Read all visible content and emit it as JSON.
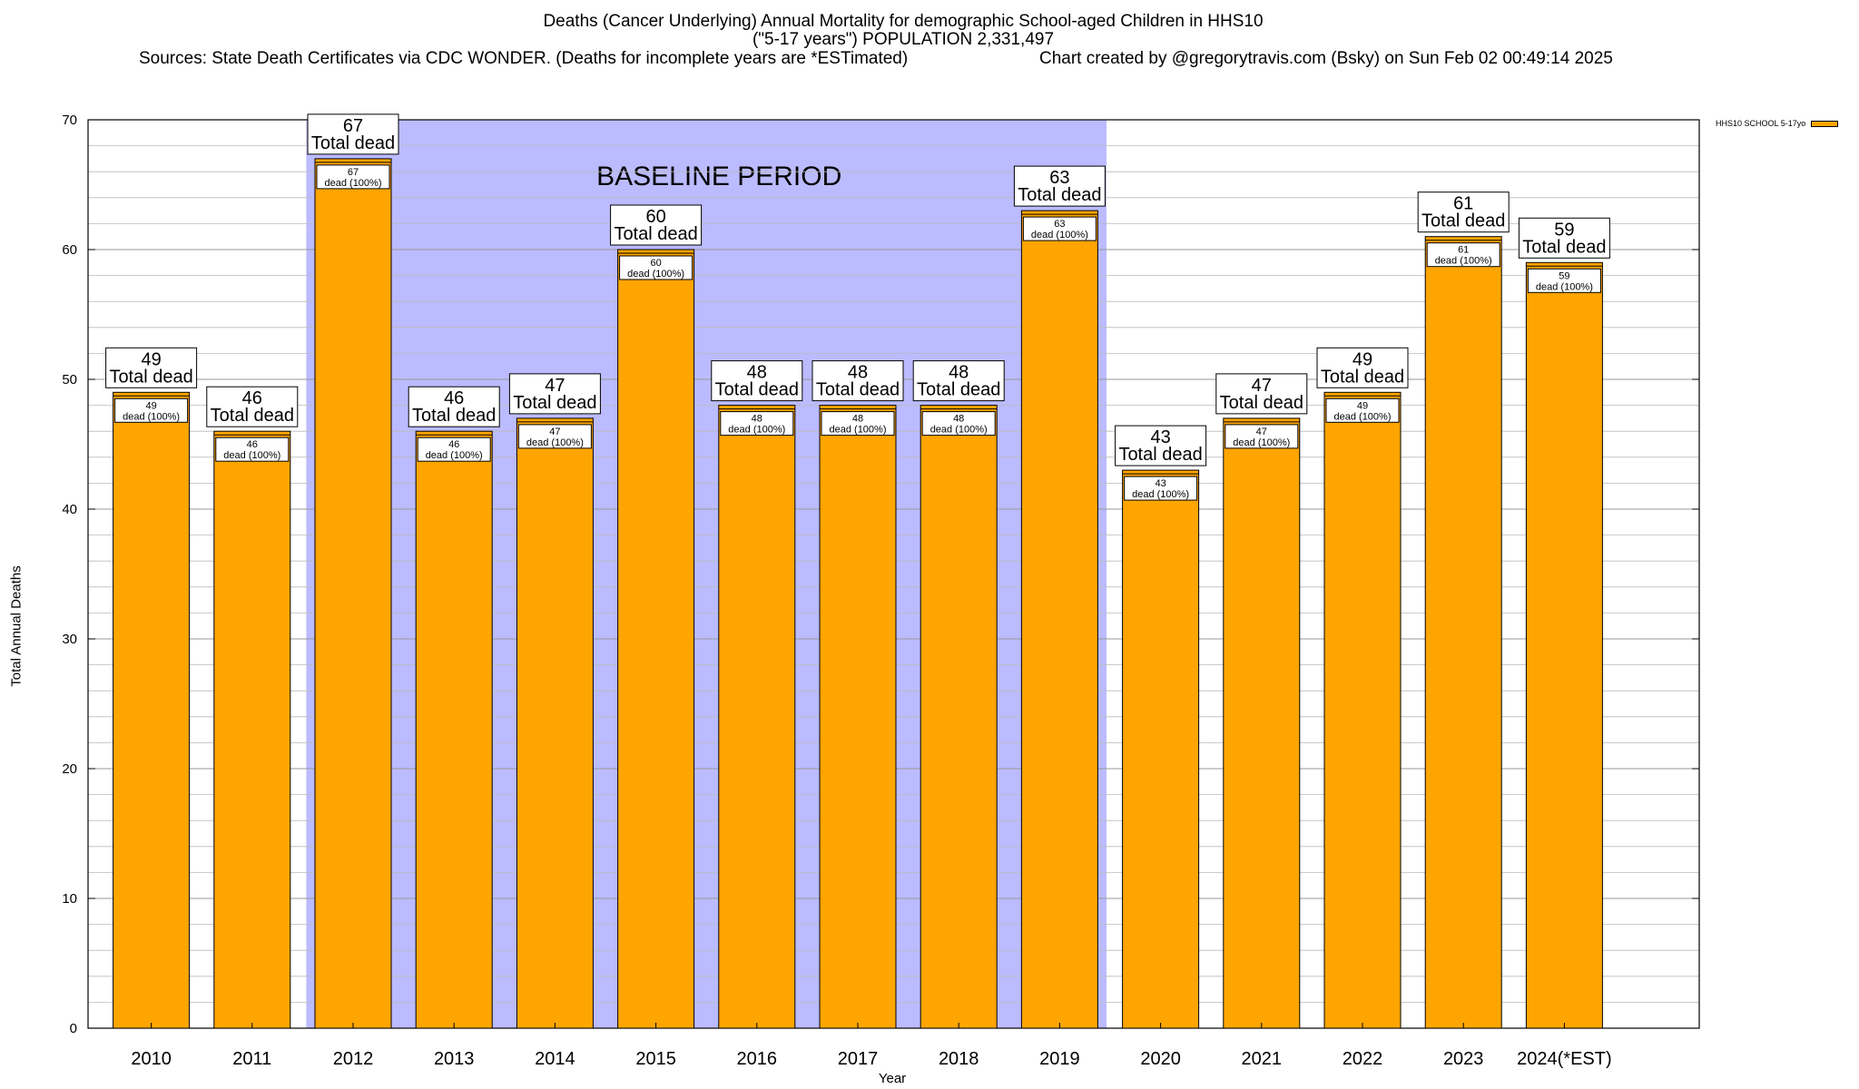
{
  "title": {
    "line1": "Deaths (Cancer Underlying) Annual Mortality for demographic School-aged Children in HHS10",
    "line2": "(\"5-17 years\") POPULATION 2,331,497",
    "sources": "Sources: State Death Certificates via CDC WONDER. (Deaths for incomplete years are *ESTimated)",
    "credit": "Chart created by @gregorytravis.com (Bsky) on Sun Feb 02 00:49:14 2025"
  },
  "legend": {
    "label": "HHS10 SCHOOL 5-17yo",
    "color": "#ffa500"
  },
  "chart_data": {
    "type": "bar",
    "categories": [
      "2010",
      "2011",
      "2012",
      "2013",
      "2014",
      "2015",
      "2016",
      "2017",
      "2018",
      "2019",
      "2020",
      "2021",
      "2022",
      "2023",
      "2024(*EST)"
    ],
    "series": [
      {
        "name": "HHS10 SCHOOL 5-17yo",
        "values": [
          49,
          46,
          67,
          46,
          47,
          60,
          48,
          48,
          48,
          63,
          43,
          47,
          49,
          61,
          59
        ],
        "color": "#ffa500"
      }
    ],
    "xlabel": "Year",
    "ylabel": "Total Annual Deaths",
    "ylim": [
      0,
      70
    ],
    "yticks": [
      0,
      10,
      20,
      30,
      40,
      50,
      60,
      70
    ],
    "grid": true,
    "legend_position": "top-right",
    "top_label_text": "Total dead",
    "inner_label_text": "dead (100%)",
    "baseline_period": {
      "label": "BASELINE PERIOD",
      "from": "2012",
      "to": "2019",
      "color": "#bbbbff"
    }
  }
}
